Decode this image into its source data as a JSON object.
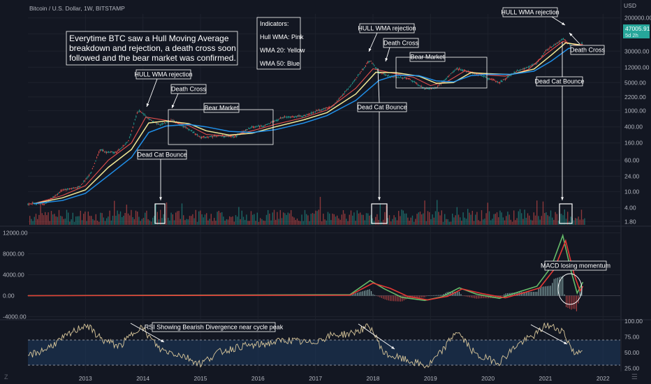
{
  "header": {
    "title": "Bitcoin / U.S. Dollar, 1W, BITSTAMP"
  },
  "price_badge": {
    "value": "47005.91",
    "sub": "5d 2h",
    "color": "#26a69a"
  },
  "price_axis": {
    "currency": "USD"
  },
  "watermark": {
    "left": "Z",
    "right": "☰"
  },
  "colors": {
    "background": "#131722",
    "up": "#26a69a",
    "down": "#ef5350",
    "hull": "#ef5350",
    "wma20": "#fff59d",
    "wma50": "#2196f3",
    "macd": "#66bb6a",
    "signal": "#e53935",
    "rsi": "#d8c69a",
    "rsi_band": "#1e3a5f"
  },
  "chart_data": [
    {
      "type": "line",
      "title": "Bitcoin / U.S. Dollar, 1W, BITSTAMP",
      "yscale": "log",
      "yticks": [
        "200000.00",
        "80000.00",
        "30000.00",
        "12000.00",
        "5000.00",
        "2200.00",
        "1000.00",
        "400.00",
        "160.00",
        "60.00",
        "24.00",
        "10.00",
        "4.00",
        "1.80"
      ],
      "ylim": [
        1.5,
        250000
      ],
      "xlim": [
        2012.0,
        2022.3
      ],
      "xticks": [
        "2013",
        "2014",
        "2015",
        "2016",
        "2017",
        "2018",
        "2019",
        "2020",
        "2021",
        "2022"
      ],
      "series": [
        {
          "name": "Price",
          "points": [
            [
              2012.0,
              5
            ],
            [
              2012.3,
              5
            ],
            [
              2012.6,
              11
            ],
            [
              2012.9,
              13
            ],
            [
              2013.1,
              30
            ],
            [
              2013.25,
              110
            ],
            [
              2013.35,
              95
            ],
            [
              2013.55,
              95
            ],
            [
              2013.75,
              180
            ],
            [
              2013.9,
              900
            ],
            [
              2013.95,
              1000
            ],
            [
              2014.1,
              620
            ],
            [
              2014.3,
              450
            ],
            [
              2014.5,
              590
            ],
            [
              2014.8,
              350
            ],
            [
              2015.0,
              220
            ],
            [
              2015.3,
              240
            ],
            [
              2015.6,
              230
            ],
            [
              2015.9,
              400
            ],
            [
              2016.1,
              420
            ],
            [
              2016.45,
              700
            ],
            [
              2016.8,
              740
            ],
            [
              2017.0,
              970
            ],
            [
              2017.3,
              1300
            ],
            [
              2017.6,
              4000
            ],
            [
              2017.9,
              15000
            ],
            [
              2017.96,
              17500
            ],
            [
              2018.1,
              9000
            ],
            [
              2018.3,
              7000
            ],
            [
              2018.6,
              6500
            ],
            [
              2018.9,
              3500
            ],
            [
              2019.1,
              3700
            ],
            [
              2019.45,
              11000
            ],
            [
              2019.6,
              10000
            ],
            [
              2019.9,
              7300
            ],
            [
              2020.2,
              5000
            ],
            [
              2020.5,
              9500
            ],
            [
              2020.85,
              15000
            ],
            [
              2021.0,
              30000
            ],
            [
              2021.3,
              60000
            ],
            [
              2021.5,
              35000
            ],
            [
              2021.65,
              47000
            ]
          ]
        },
        {
          "name": "",
          "points": [
            [
              2012.1,
              5
            ],
            [
              2012.6,
              8
            ],
            [
              2013.0,
              14
            ],
            [
              2013.4,
              60
            ],
            [
              2013.8,
              160
            ],
            [
              2014.05,
              700
            ],
            [
              2014.4,
              580
            ],
            [
              2014.8,
              430
            ],
            [
              2015.1,
              260
            ],
            [
              2015.5,
              235
            ],
            [
              2015.9,
              320
            ],
            [
              2016.3,
              460
            ],
            [
              2016.8,
              680
            ],
            [
              2017.2,
              1050
            ],
            [
              2017.7,
              3600
            ],
            [
              2018.0,
              11000
            ],
            [
              2018.3,
              8800
            ],
            [
              2018.7,
              6800
            ],
            [
              2019.0,
              4200
            ],
            [
              2019.3,
              5400
            ],
            [
              2019.6,
              9800
            ],
            [
              2019.95,
              7800
            ],
            [
              2020.3,
              7200
            ],
            [
              2020.7,
              10500
            ],
            [
              2021.0,
              25000
            ],
            [
              2021.3,
              52000
            ],
            [
              2021.55,
              42000
            ],
            [
              2021.65,
              44000
            ]
          ]
        },
        {
          "name": "",
          "points": [
            [
              2012.1,
              5
            ],
            [
              2012.6,
              7
            ],
            [
              2013.0,
              11
            ],
            [
              2013.4,
              40
            ],
            [
              2013.8,
              110
            ],
            [
              2014.1,
              500
            ],
            [
              2014.4,
              560
            ],
            [
              2014.8,
              480
            ],
            [
              2015.1,
              320
            ],
            [
              2015.5,
              250
            ],
            [
              2015.9,
              280
            ],
            [
              2016.3,
              400
            ],
            [
              2016.8,
              600
            ],
            [
              2017.2,
              900
            ],
            [
              2017.7,
              2600
            ],
            [
              2018.05,
              9000
            ],
            [
              2018.4,
              8800
            ],
            [
              2018.8,
              7200
            ],
            [
              2019.1,
              4800
            ],
            [
              2019.4,
              5000
            ],
            [
              2019.7,
              8800
            ],
            [
              2020.0,
              8300
            ],
            [
              2020.4,
              7900
            ],
            [
              2020.8,
              10800
            ],
            [
              2021.1,
              24000
            ],
            [
              2021.35,
              48000
            ],
            [
              2021.6,
              43000
            ]
          ]
        },
        {
          "name": "",
          "points": [
            [
              2012.1,
              5
            ],
            [
              2012.6,
              6
            ],
            [
              2013.0,
              9
            ],
            [
              2013.4,
              25
            ],
            [
              2013.8,
              70
            ],
            [
              2014.1,
              290
            ],
            [
              2014.4,
              420
            ],
            [
              2014.8,
              460
            ],
            [
              2015.1,
              400
            ],
            [
              2015.5,
              310
            ],
            [
              2015.9,
              290
            ],
            [
              2016.3,
              340
            ],
            [
              2016.8,
              500
            ],
            [
              2017.2,
              760
            ],
            [
              2017.7,
              1800
            ],
            [
              2018.1,
              5600
            ],
            [
              2018.4,
              7600
            ],
            [
              2018.8,
              7400
            ],
            [
              2019.1,
              5500
            ],
            [
              2019.4,
              5200
            ],
            [
              2019.7,
              7400
            ],
            [
              2020.0,
              8000
            ],
            [
              2020.4,
              8000
            ],
            [
              2020.8,
              9600
            ],
            [
              2021.1,
              17000
            ],
            [
              2021.4,
              35000
            ],
            [
              2021.65,
              40000
            ]
          ]
        }
      ],
      "annotations": [
        "Everytime BTC saw a Hull Moving Average breakdown and rejection, a death cross soon followed and the bear market was confirmed.",
        "Indicators:",
        "Hull WMA: Pink",
        "WMA 20: Yellow",
        "WMA 50: Blue",
        "HULL WMA rejection",
        "Death Cross",
        "Bear Market",
        "Dead Cat Bounce",
        "HULL WMA rejection",
        "Death Cross",
        "Bear Market",
        "Dead Cat Bounce",
        "HULL WMA rejection",
        "Death Cross",
        "Dead Cat Bounce"
      ]
    },
    {
      "type": "line",
      "title": "",
      "yticks": [
        "12000.00",
        "8000.00",
        "4000.00",
        "0.00",
        "-4000.00"
      ],
      "ylim": [
        -4600,
        13000
      ],
      "series": [
        {
          "name": "",
          "points": [
            [
              2012.0,
              0
            ],
            [
              2017.6,
              200
            ],
            [
              2017.95,
              2900
            ],
            [
              2018.2,
              1300
            ],
            [
              2018.5,
              -300
            ],
            [
              2018.9,
              -900
            ],
            [
              2019.2,
              -200
            ],
            [
              2019.5,
              1500
            ],
            [
              2019.8,
              300
            ],
            [
              2020.2,
              -500
            ],
            [
              2020.5,
              600
            ],
            [
              2020.85,
              1800
            ],
            [
              2021.1,
              5500
            ],
            [
              2021.3,
              11500
            ],
            [
              2021.45,
              4500
            ],
            [
              2021.55,
              500
            ],
            [
              2021.65,
              2600
            ]
          ]
        },
        {
          "name": "",
          "points": [
            [
              2012.0,
              0
            ],
            [
              2017.6,
              100
            ],
            [
              2018.0,
              2400
            ],
            [
              2018.3,
              1400
            ],
            [
              2018.6,
              -100
            ],
            [
              2018.95,
              -800
            ],
            [
              2019.3,
              -100
            ],
            [
              2019.55,
              1300
            ],
            [
              2019.9,
              400
            ],
            [
              2020.3,
              -400
            ],
            [
              2020.6,
              500
            ],
            [
              2020.9,
              1500
            ],
            [
              2021.15,
              5000
            ],
            [
              2021.35,
              10500
            ],
            [
              2021.5,
              4000
            ],
            [
              2021.6,
              900
            ],
            [
              2021.65,
              1800
            ]
          ]
        }
      ],
      "annotations": [
        "MACD losing momentum"
      ]
    },
    {
      "type": "line",
      "title": "",
      "yticks": [
        "100.00",
        "75.00",
        "50.00",
        "25.00"
      ],
      "ylim": [
        20,
        100
      ],
      "band": [
        30,
        70
      ],
      "series": [
        {
          "name": "",
          "points": [
            [
              2012.0,
              45
            ],
            [
              2012.3,
              55
            ],
            [
              2012.6,
              72
            ],
            [
              2013.0,
              95
            ],
            [
              2013.3,
              70
            ],
            [
              2013.6,
              60
            ],
            [
              2013.95,
              92
            ],
            [
              2014.3,
              55
            ],
            [
              2014.7,
              45
            ],
            [
              2015.0,
              32
            ],
            [
              2015.3,
              50
            ],
            [
              2015.7,
              60
            ],
            [
              2016.0,
              62
            ],
            [
              2016.5,
              70
            ],
            [
              2016.9,
              65
            ],
            [
              2017.3,
              78
            ],
            [
              2017.6,
              80
            ],
            [
              2017.95,
              92
            ],
            [
              2018.2,
              48
            ],
            [
              2018.5,
              40
            ],
            [
              2018.95,
              28
            ],
            [
              2019.2,
              52
            ],
            [
              2019.45,
              85
            ],
            [
              2019.8,
              45
            ],
            [
              2020.2,
              35
            ],
            [
              2020.5,
              62
            ],
            [
              2020.85,
              80
            ],
            [
              2021.0,
              94
            ],
            [
              2021.3,
              85
            ],
            [
              2021.5,
              48
            ],
            [
              2021.65,
              58
            ]
          ]
        }
      ],
      "annotations": [
        "RSI Showing Bearish Divergence near cycle peak"
      ]
    }
  ]
}
